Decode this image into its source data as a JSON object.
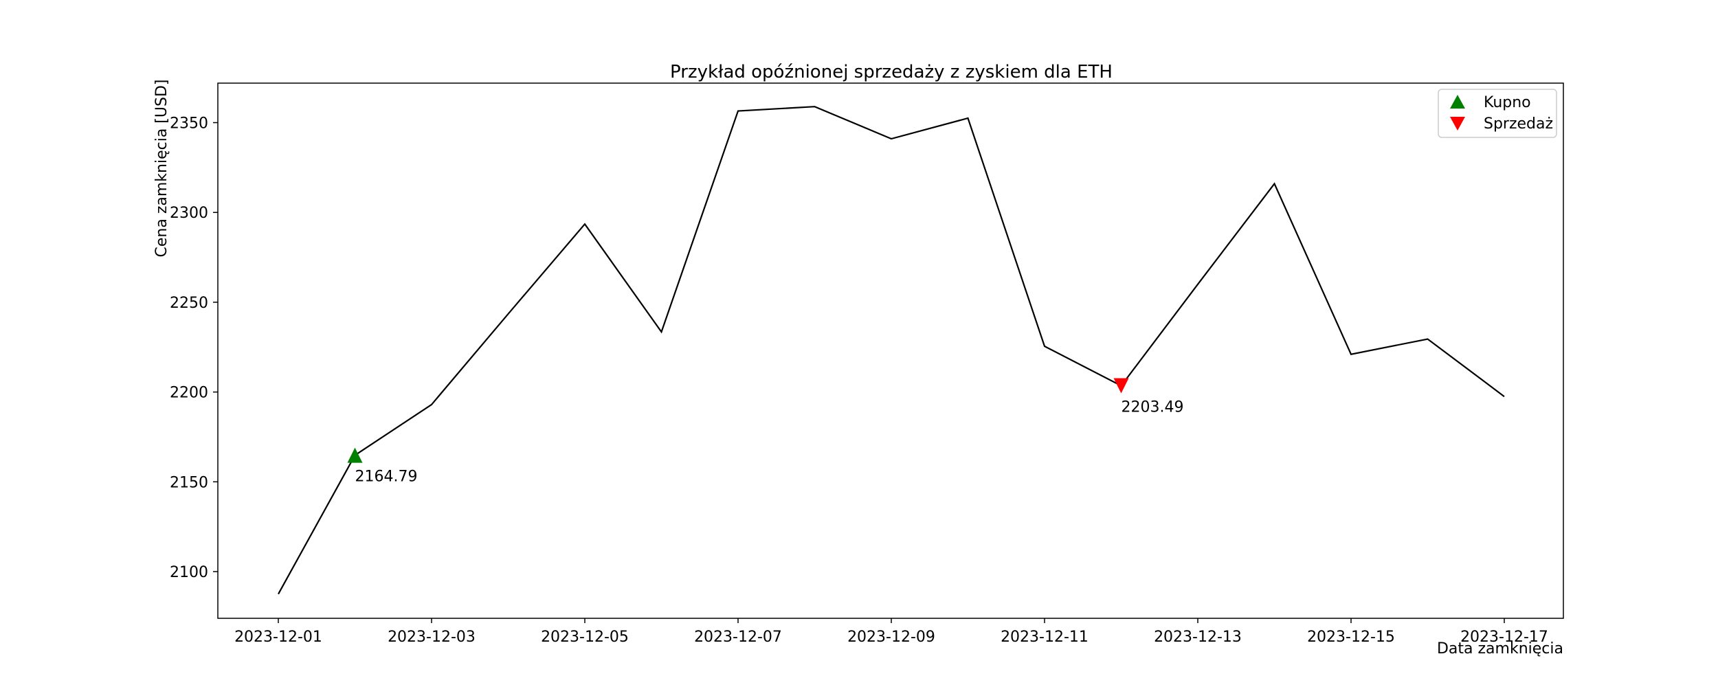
{
  "chart_data": {
    "type": "line",
    "title": "Przykład opóźnionej sprzedaży z zyskiem dla ETH",
    "xlabel": "Data zamknięcia",
    "ylabel": "Cena zamknięcia [USD]",
    "x": [
      "2023-12-01",
      "2023-12-02",
      "2023-12-03",
      "2023-12-04",
      "2023-12-05",
      "2023-12-06",
      "2023-12-07",
      "2023-12-08",
      "2023-12-09",
      "2023-12-10",
      "2023-12-11",
      "2023-12-12",
      "2023-12-13",
      "2023-12-14",
      "2023-12-15",
      "2023-12-16",
      "2023-12-17"
    ],
    "series": [
      {
        "values": [
          2087.5,
          2164.79,
          2193.0,
          2243.5,
          2293.5,
          2233.5,
          2356.5,
          2358.9,
          2341.0,
          2352.5,
          2225.5,
          2203.49,
          2260.0,
          2316.0,
          2221.0,
          2229.5,
          2197.5
        ],
        "color": "#000000"
      }
    ],
    "x_ticks": [
      "2023-12-01",
      "2023-12-03",
      "2023-12-05",
      "2023-12-07",
      "2023-12-09",
      "2023-12-11",
      "2023-12-13",
      "2023-12-15",
      "2023-12-17"
    ],
    "y_ticks": [
      "2100",
      "2150",
      "2200",
      "2250",
      "2300",
      "2350"
    ],
    "ylim": [
      2074,
      2372
    ],
    "xlim": [
      "2023-12-01",
      "2023-12-17"
    ],
    "grid": false,
    "markers": [
      {
        "name": "Kupno",
        "x": "2023-12-02",
        "y": 2164.79,
        "label": "2164.79",
        "shape": "triangle-up",
        "color": "#008000"
      },
      {
        "name": "Sprzedaż",
        "x": "2023-12-12",
        "y": 2203.49,
        "label": "2203.49",
        "shape": "triangle-down",
        "color": "#ff0000"
      }
    ],
    "legend": {
      "position": "top-right",
      "entries": [
        {
          "label": "Kupno",
          "shape": "triangle-up",
          "color": "#008000"
        },
        {
          "label": "Sprzedaż",
          "shape": "triangle-down",
          "color": "#ff0000"
        }
      ]
    }
  }
}
